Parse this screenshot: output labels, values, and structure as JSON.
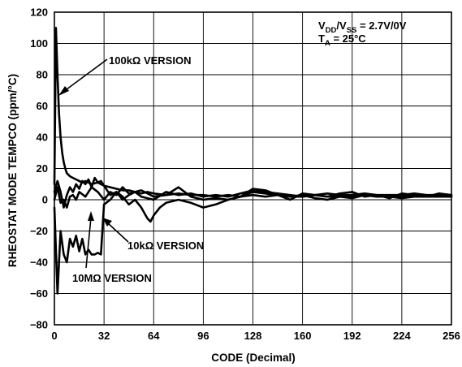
{
  "chart_data": {
    "type": "line",
    "title": "",
    "xlabel": "CODE (Decimal)",
    "ylabel": "RHEOSTAT MODE TEMPCO (ppm/°C)",
    "xlim": [
      0,
      256
    ],
    "ylim": [
      -80,
      120
    ],
    "x_ticks": [
      0,
      32,
      64,
      96,
      128,
      160,
      192,
      224,
      256
    ],
    "y_ticks": [
      -80,
      -60,
      -40,
      -20,
      0,
      20,
      40,
      60,
      80,
      100,
      120
    ],
    "grid": true,
    "conditions": {
      "supply_prefix": "V",
      "supply_sub1": "DD",
      "supply_mid": "/V",
      "supply_sub2": "SS",
      "supply_suffix": " = 2.7V/0V",
      "temp_prefix": "T",
      "temp_sub": "A",
      "temp_suffix": " = 25°C"
    },
    "annotations": {
      "v100k": "100kΩ VERSION",
      "v10k": "10kΩ VERSION",
      "v10m": "10MΩ VERSION"
    },
    "series": [
      {
        "name": "100kΩ VERSION",
        "x": [
          0,
          1,
          2,
          3,
          4,
          5,
          6,
          7,
          8,
          10,
          12,
          14,
          16,
          18,
          20,
          24,
          28,
          32,
          36,
          40,
          44,
          48,
          52,
          56,
          60,
          64,
          72,
          80,
          88,
          96,
          104,
          112,
          120,
          128,
          136,
          144,
          152,
          160,
          168,
          176,
          184,
          192,
          200,
          208,
          216,
          224,
          232,
          240,
          248,
          256
        ],
        "y": [
          10,
          110,
          80,
          55,
          40,
          30,
          24,
          20,
          17,
          15,
          14,
          13,
          12,
          11,
          12,
          10,
          11,
          9,
          8,
          7,
          6,
          6,
          5,
          4,
          5,
          4,
          3,
          4,
          3,
          3,
          2,
          3,
          2,
          3,
          2,
          3,
          2,
          2,
          3,
          2,
          2,
          2,
          3,
          2,
          2,
          2,
          3,
          2,
          2,
          2
        ]
      },
      {
        "name": "10kΩ VERSION",
        "x": [
          0,
          2,
          4,
          6,
          8,
          10,
          12,
          14,
          16,
          18,
          20,
          22,
          24,
          26,
          28,
          30,
          32,
          36,
          40,
          44,
          48,
          52,
          56,
          60,
          62,
          64,
          68,
          72,
          80,
          88,
          96,
          104,
          112,
          120,
          128,
          136,
          144,
          152,
          160,
          168,
          176,
          184,
          192,
          200,
          208,
          216,
          224,
          232,
          240,
          248,
          256
        ],
        "y": [
          -5,
          -60,
          -20,
          -35,
          -40,
          -25,
          -30,
          -23,
          -33,
          -25,
          -35,
          -32,
          -35,
          -35,
          -34,
          -35,
          -3,
          0,
          5,
          2,
          -3,
          0,
          -5,
          -12,
          -14,
          -10,
          -5,
          -2,
          0,
          -2,
          -5,
          -3,
          0,
          2,
          5,
          4,
          3,
          2,
          3,
          1,
          0,
          2,
          1,
          3,
          2,
          2,
          1,
          2,
          2,
          2,
          2
        ]
      },
      {
        "name": "10MΩ VERSION",
        "x": [
          0,
          2,
          4,
          6,
          8,
          10,
          12,
          14,
          16,
          18,
          20,
          22,
          24,
          26,
          28,
          30,
          32,
          36,
          40,
          44,
          48,
          52,
          56,
          64,
          72,
          80,
          88,
          96,
          104,
          112,
          120,
          128,
          136,
          144,
          152,
          160,
          168,
          176,
          184,
          192,
          200,
          208,
          216,
          224,
          232,
          240,
          248,
          256
        ],
        "y": [
          5,
          12,
          5,
          -5,
          3,
          8,
          5,
          10,
          7,
          12,
          10,
          13,
          8,
          14,
          11,
          12,
          9,
          3,
          5,
          0,
          3,
          5,
          2,
          0,
          5,
          3,
          4,
          2,
          3,
          2,
          4,
          6,
          5,
          4,
          3,
          2,
          3,
          4,
          3,
          3,
          4,
          3,
          3,
          3,
          4,
          3,
          3,
          3
        ]
      },
      {
        "name": "",
        "x": [
          0,
          2,
          4,
          6,
          8,
          10,
          12,
          14,
          16,
          20,
          24,
          28,
          32,
          36,
          40,
          44,
          48,
          56,
          64,
          72,
          80,
          88,
          96,
          104,
          112,
          120,
          128,
          136,
          144,
          152,
          160,
          168,
          176,
          184,
          192,
          200,
          208,
          216,
          224,
          232,
          240,
          248,
          256
        ],
        "y": [
          0,
          8,
          -2,
          0,
          -5,
          2,
          3,
          0,
          5,
          2,
          8,
          5,
          0,
          5,
          3,
          8,
          4,
          6,
          2,
          3,
          8,
          2,
          0,
          1,
          0,
          2,
          7,
          6,
          3,
          0,
          4,
          3,
          2,
          4,
          5,
          2,
          3,
          1,
          4,
          3,
          2,
          4,
          3
        ]
      }
    ]
  }
}
